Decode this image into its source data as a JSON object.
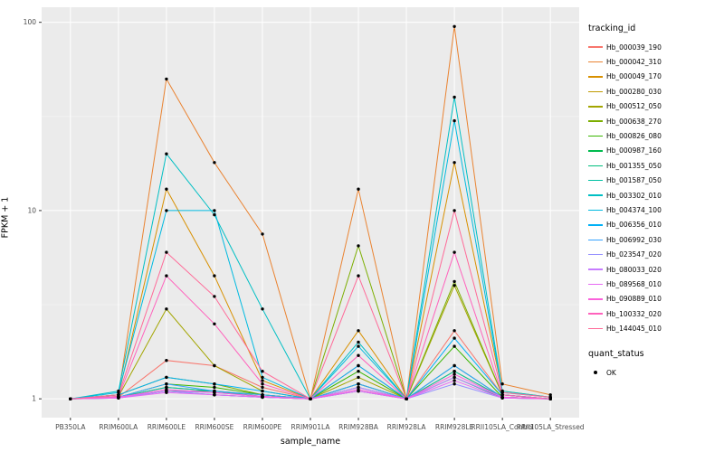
{
  "chart_data": {
    "type": "line",
    "title": "",
    "xlabel": "sample_name",
    "ylabel": "FPKM + 1",
    "y_scale": "log10",
    "y_ticks": [
      1,
      10,
      100
    ],
    "ylim": [
      0.79,
      120
    ],
    "grid": true,
    "legend_position": "right",
    "legend_title": "tracking_id",
    "point_legend": {
      "title": "quant_status",
      "items": [
        {
          "label": "OK"
        }
      ]
    },
    "colors": {
      "panel_bg": "#EBEBEB",
      "grid_major": "#FFFFFF",
      "grid_minor": "#F7F7F7",
      "tick_text": "#4D4D4D",
      "point": "#000000"
    },
    "categories": [
      "PB350LA",
      "RRIM600LA",
      "RRIM600LE",
      "RRIM600SE",
      "RRIM600PE",
      "RRIM901LA",
      "RRIM928BA",
      "RRIM928LA",
      "RRIM928LE",
      "RRII105LA_Control",
      "RRII105LA_Stressed"
    ],
    "series": [
      {
        "name": "Hb_000039_190",
        "color": "#F8766D",
        "values": [
          1,
          1.02,
          1.6,
          1.5,
          1.15,
          1,
          1.5,
          1,
          2.3,
          1.05,
          1
        ]
      },
      {
        "name": "Hb_000042_310",
        "color": "#EA8331",
        "values": [
          1,
          1.05,
          50,
          18,
          7.5,
          1,
          13,
          1,
          95,
          1.2,
          1.05
        ]
      },
      {
        "name": "Hb_000049_170",
        "color": "#D89000",
        "values": [
          1,
          1.05,
          13,
          4.5,
          1.25,
          1,
          2.3,
          1,
          18,
          1.1,
          1.02
        ]
      },
      {
        "name": "Hb_000280_030",
        "color": "#C09B00",
        "values": [
          1,
          1.02,
          1.15,
          1.1,
          1.05,
          1,
          1.2,
          1,
          1.4,
          1.02,
          1
        ]
      },
      {
        "name": "Hb_000512_050",
        "color": "#A3A500",
        "values": [
          1,
          1.03,
          3,
          1.5,
          1.1,
          1,
          1.3,
          1,
          4,
          1.05,
          1
        ]
      },
      {
        "name": "Hb_000638_270",
        "color": "#7CAE00",
        "values": [
          1,
          1.05,
          1.3,
          1.2,
          1.05,
          1,
          6.5,
          1,
          4.2,
          1.05,
          1
        ]
      },
      {
        "name": "Hb_000826_080",
        "color": "#39B600",
        "values": [
          1,
          1.02,
          1.2,
          1.15,
          1.05,
          1,
          1.4,
          1,
          1.9,
          1.02,
          1
        ]
      },
      {
        "name": "Hb_000987_160",
        "color": "#00BB4E",
        "values": [
          1,
          1.02,
          1.1,
          1.1,
          1.02,
          1,
          1.2,
          1,
          1.5,
          1.02,
          1
        ]
      },
      {
        "name": "Hb_001355_050",
        "color": "#00BF7D",
        "values": [
          1,
          1.01,
          1.1,
          1.05,
          1.02,
          1,
          1.1,
          1,
          1.3,
          1.01,
          1
        ]
      },
      {
        "name": "Hb_001587_050",
        "color": "#00C1A3",
        "values": [
          1,
          1.02,
          1.15,
          1.1,
          1.03,
          1,
          1.15,
          1,
          1.4,
          1.02,
          1
        ]
      },
      {
        "name": "Hb_003302_010",
        "color": "#00BFC4",
        "values": [
          1,
          1.1,
          20,
          9.5,
          3,
          1,
          2,
          1,
          40,
          1.1,
          1.02
        ]
      },
      {
        "name": "Hb_004374_100",
        "color": "#00BAE0",
        "values": [
          1,
          1.08,
          10,
          10,
          1.3,
          1,
          1.9,
          1,
          30,
          1.08,
          1.02
        ]
      },
      {
        "name": "Hb_006356_010",
        "color": "#00B0F6",
        "values": [
          1,
          1.05,
          1.3,
          1.2,
          1.1,
          1,
          1.5,
          1,
          2.1,
          1.05,
          1
        ]
      },
      {
        "name": "Hb_006992_030",
        "color": "#35A2FF",
        "values": [
          1,
          1.02,
          1.2,
          1.1,
          1.05,
          1,
          1.2,
          1,
          1.5,
          1.02,
          1
        ]
      },
      {
        "name": "Hb_023547_020",
        "color": "#9590FF",
        "values": [
          1,
          1.01,
          1.1,
          1.05,
          1.02,
          1,
          1.1,
          1,
          1.2,
          1.01,
          1
        ]
      },
      {
        "name": "Hb_080033_020",
        "color": "#C77CFF",
        "values": [
          1,
          1.02,
          1.1,
          1.08,
          1.03,
          1,
          1.15,
          1,
          1.3,
          1.02,
          1
        ]
      },
      {
        "name": "Hb_089568_010",
        "color": "#E76BF3",
        "values": [
          1,
          1.01,
          1.08,
          1.05,
          1.02,
          1,
          1.1,
          1,
          1.25,
          1.01,
          1
        ]
      },
      {
        "name": "Hb_090889_010",
        "color": "#FA62DB",
        "values": [
          1,
          1.02,
          1.12,
          1.08,
          1.03,
          1,
          1.12,
          1,
          1.35,
          1.02,
          1
        ]
      },
      {
        "name": "Hb_100332_020",
        "color": "#FF62BC",
        "values": [
          1,
          1.03,
          4.5,
          2.5,
          1.2,
          1,
          1.7,
          1,
          6,
          1.05,
          1
        ]
      },
      {
        "name": "Hb_144045_010",
        "color": "#FF6A98",
        "values": [
          1,
          1.05,
          6,
          3.5,
          1.4,
          1,
          4.5,
          1,
          10,
          1.08,
          1.02
        ]
      }
    ]
  }
}
